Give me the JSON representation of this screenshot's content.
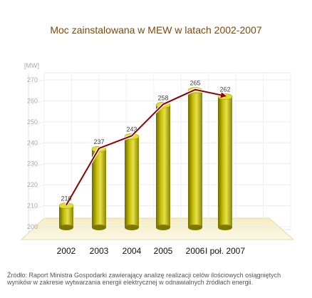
{
  "chart_data": {
    "type": "bar",
    "title": "Moc zainstalowana w MEW w latach 2002-2007",
    "ylabel": "[MW]",
    "xlabel": "",
    "categories": [
      "2002",
      "2003",
      "2004",
      "2005",
      "2006",
      "I poł. 2007"
    ],
    "values": [
      210,
      237,
      243,
      258,
      265,
      262
    ],
    "ylim": [
      200,
      270
    ],
    "yticks": [
      "200",
      "210",
      "220",
      "230",
      "240",
      "250",
      "260",
      "270"
    ],
    "grid": true,
    "bar_color": "#c8c000",
    "line_color": "#8b0000",
    "overlay": "line with arrow connecting bar tops"
  },
  "source_note": "Źródło: Raport Ministra Gospodarki zawierający analizę realizacji celów ilościowych osiągniętych wyników w zakresie wytwarzania energii elektrycznej w odnawialnych źródłach energii."
}
